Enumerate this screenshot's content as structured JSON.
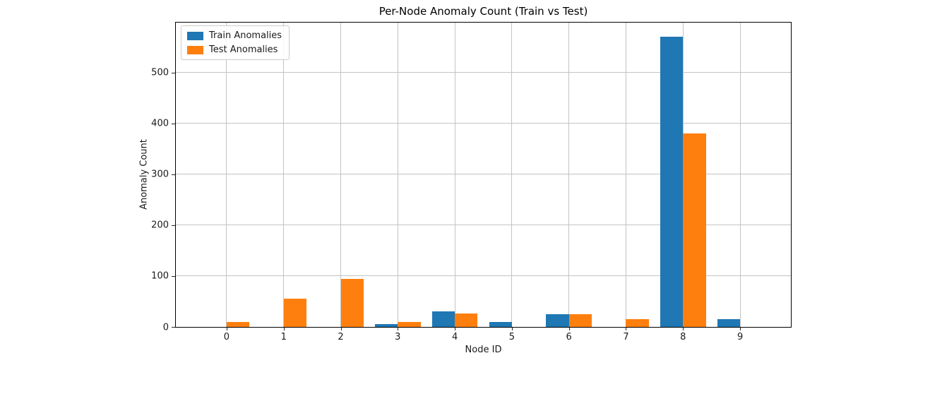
{
  "chart_data": {
    "type": "bar",
    "title": "Per-Node Anomaly Count (Train vs Test)",
    "xlabel": "Node ID",
    "ylabel": "Anomaly Count",
    "categories": [
      "0",
      "1",
      "2",
      "3",
      "4",
      "5",
      "6",
      "7",
      "8",
      "9"
    ],
    "series": [
      {
        "name": "Train Anomalies",
        "color": "#1f77b4",
        "values": [
          0,
          0,
          0,
          5,
          30,
          10,
          25,
          0,
          570,
          15
        ]
      },
      {
        "name": "Test Anomalies",
        "color": "#ff7f0e",
        "values": [
          10,
          55,
          95,
          10,
          27,
          0,
          25,
          15,
          380,
          0
        ]
      }
    ],
    "ylim": [
      0,
      598
    ],
    "yticks": [
      0,
      100,
      200,
      300,
      400,
      500
    ],
    "bar_width": 0.4,
    "grid": true,
    "legend_position": "upper left",
    "colors": {
      "grid": "#c3c3c3",
      "spine": "#000000",
      "tick_text": "#1a1a1a",
      "background": "#ffffff"
    }
  }
}
